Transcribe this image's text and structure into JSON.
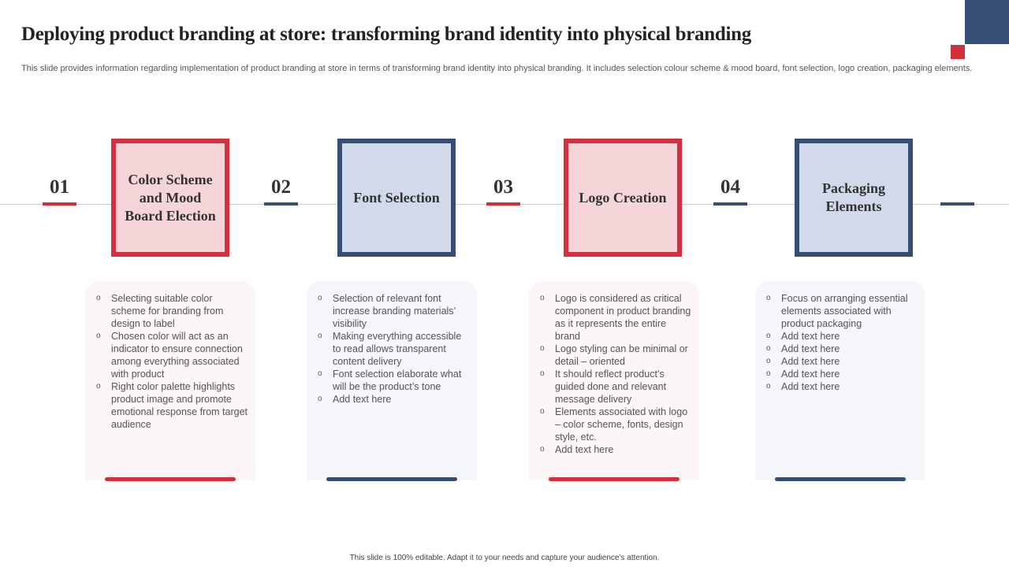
{
  "title": "Deploying product branding at store: transforming brand identity into physical branding",
  "subtitle": "This slide provides information regarding implementation of product branding at store in terms of transforming brand identity into physical branding. It includes selection colour scheme & mood board, font selection, logo creation, packaging elements.",
  "colors": {
    "red": "#d0313d",
    "navy": "#364d74"
  },
  "steps": [
    {
      "number": "01",
      "title": "Color Scheme and Mood Board Election",
      "points": [
        "Selecting suitable color scheme for branding from design to label",
        "Chosen color will act as an indicator to ensure connection among everything associated with product",
        "Right color palette highlights product image and promote emotional response from target audience"
      ]
    },
    {
      "number": "02",
      "title": "Font Selection",
      "points": [
        "Selection of relevant font increase branding materials’ visibility",
        "Making everything accessible to read allows transparent content delivery",
        "Font selection elaborate what will be the product’s tone",
        "Add text here"
      ]
    },
    {
      "number": "03",
      "title": "Logo Creation",
      "points": [
        "Logo is considered as critical component in product branding as it represents the entire brand",
        "Logo styling can be minimal or detail – oriented",
        "It should reflect product’s guided done and relevant message delivery",
        "Elements associated with logo – color scheme, fonts, design style, etc.",
        "Add text here"
      ]
    },
    {
      "number": "04",
      "title": "Packaging Elements",
      "points": [
        "Focus on arranging essential elements associated with product packaging",
        "Add text here",
        "Add text here",
        "Add text here",
        "Add text here",
        "Add text here"
      ]
    }
  ],
  "footer": "This slide is 100% editable.  Adapt it to your needs and capture your audience’s attention."
}
